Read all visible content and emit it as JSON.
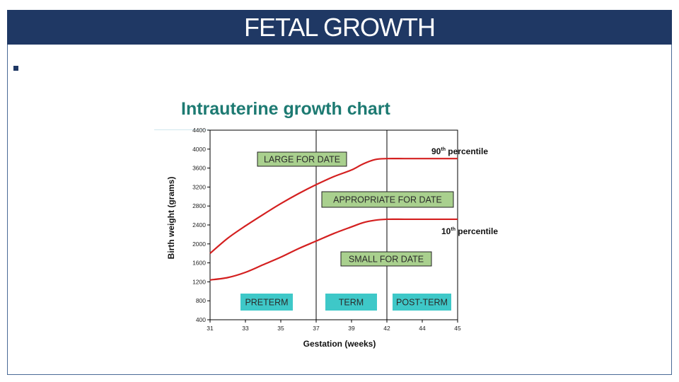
{
  "slide": {
    "title": "FETAL GROWTH",
    "bullet_text": ""
  },
  "colors": {
    "title_bar": "#1f3864",
    "chart_title": "#1d7a72",
    "curve": "#d42020",
    "green_label": "#a9d08e",
    "cyan_label": "#3ec8c8"
  },
  "chart_data": {
    "type": "line",
    "title": "Intrauterine growth chart",
    "xlabel": "Gestation (weeks)",
    "ylabel": "Birth weight (grams)",
    "xlim": [
      31,
      45
    ],
    "ylim": [
      400,
      4400
    ],
    "x_ticks": [
      "31",
      "33",
      "35",
      "37",
      "39",
      "42",
      "44",
      "45"
    ],
    "y_ticks": [
      "4400",
      "4000",
      "3600",
      "3200",
      "2800",
      "2400",
      "2000",
      "1600",
      "1200",
      "800",
      "400"
    ],
    "vertical_dividers": [
      37,
      42
    ],
    "series": [
      {
        "name": "90th percentile",
        "label_main": "90",
        "label_sup": "th",
        "label_rest": " percentile",
        "x": [
          31,
          32,
          33,
          34,
          35,
          36,
          37,
          38,
          39,
          40,
          41,
          42,
          43,
          44,
          45
        ],
        "values": [
          1800,
          2120,
          2380,
          2620,
          2850,
          3060,
          3250,
          3420,
          3560,
          3690,
          3780,
          3800,
          3800,
          3800,
          3800
        ]
      },
      {
        "name": "10th percentile",
        "label_main": "10",
        "label_sup": "th",
        "label_rest": " percentile",
        "x": [
          31,
          32,
          33,
          34,
          35,
          36,
          37,
          38,
          39,
          40,
          41,
          42,
          43,
          44,
          45
        ],
        "values": [
          1240,
          1290,
          1400,
          1560,
          1720,
          1900,
          2060,
          2220,
          2360,
          2450,
          2500,
          2520,
          2520,
          2520,
          2520
        ]
      }
    ],
    "region_labels": [
      {
        "text": "LARGE FOR DATE",
        "style": "green"
      },
      {
        "text": "APPROPRIATE FOR DATE",
        "style": "green"
      },
      {
        "text": "SMALL FOR DATE",
        "style": "green"
      },
      {
        "text": "PRETERM",
        "style": "cyan"
      },
      {
        "text": "TERM",
        "style": "cyan"
      },
      {
        "text": "POST-TERM",
        "style": "cyan"
      }
    ],
    "grid": false,
    "legend": "none"
  }
}
